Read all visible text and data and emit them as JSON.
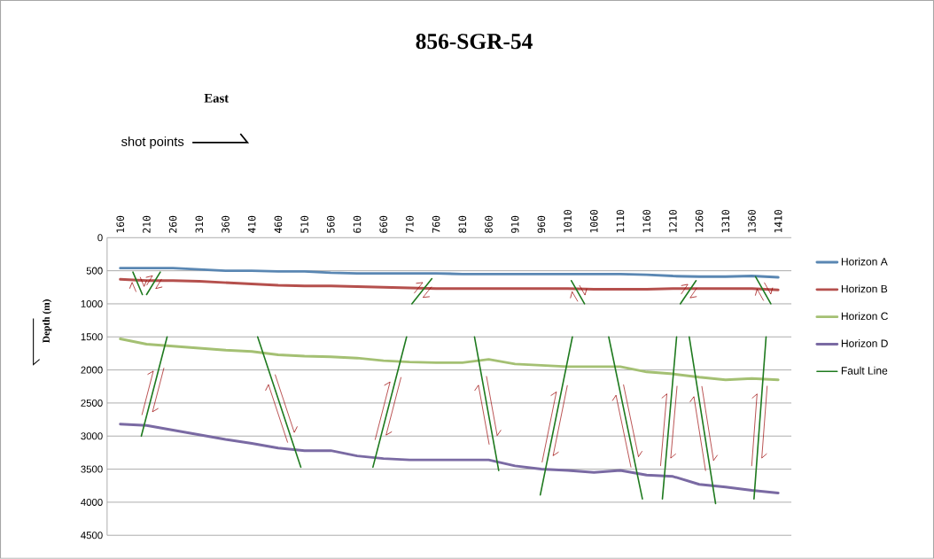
{
  "chart_data": {
    "type": "line",
    "title": "856-SGR-54",
    "xlabel": "shot points",
    "ylabel": "Depth (m)",
    "annotations": [
      "East"
    ],
    "x": [
      160,
      210,
      260,
      310,
      360,
      410,
      460,
      510,
      560,
      610,
      660,
      710,
      760,
      810,
      860,
      910,
      960,
      1010,
      1060,
      1110,
      1160,
      1210,
      1260,
      1310,
      1360,
      1410
    ],
    "xlim": [
      135,
      1435
    ],
    "xticks": [
      160,
      210,
      260,
      310,
      360,
      410,
      460,
      510,
      560,
      610,
      660,
      710,
      760,
      810,
      860,
      910,
      960,
      1010,
      1060,
      1110,
      1160,
      1210,
      1260,
      1310,
      1360,
      1410
    ],
    "ylim": [
      4500,
      0
    ],
    "yticks": [
      0,
      500,
      1000,
      1500,
      2000,
      2500,
      3000,
      3500,
      4000,
      4500
    ],
    "grid": "y",
    "legend": "right",
    "marker": "none",
    "line_style": "solid",
    "series": [
      {
        "name": "Horizon A",
        "color": "#5a87b3",
        "values": [
          460,
          460,
          460,
          480,
          500,
          500,
          510,
          510,
          530,
          540,
          540,
          540,
          540,
          550,
          550,
          550,
          550,
          550,
          550,
          550,
          560,
          580,
          590,
          590,
          580,
          600
        ]
      },
      {
        "name": "Horizon B",
        "color": "#b5504d",
        "values": [
          630,
          650,
          650,
          660,
          680,
          700,
          720,
          730,
          730,
          740,
          750,
          760,
          770,
          770,
          770,
          770,
          770,
          770,
          780,
          780,
          780,
          770,
          770,
          770,
          770,
          790
        ]
      },
      {
        "name": "Horizon C",
        "color": "#a4c073",
        "values": [
          1530,
          1610,
          1640,
          1670,
          1700,
          1720,
          1770,
          1790,
          1800,
          1820,
          1860,
          1880,
          1890,
          1890,
          1840,
          1910,
          1930,
          1950,
          1950,
          1950,
          2030,
          2060,
          2110,
          2150,
          2130,
          2150
        ]
      },
      {
        "name": "Horizon D",
        "color": "#7a6aa3",
        "values": [
          2820,
          2840,
          2910,
          2980,
          3050,
          3110,
          3180,
          3220,
          3220,
          3300,
          3340,
          3360,
          3360,
          3360,
          3360,
          3450,
          3500,
          3520,
          3550,
          3520,
          3590,
          3610,
          3730,
          3770,
          3820,
          3860
        ]
      },
      {
        "name": "Fault Line",
        "type": "line",
        "color": "#1f7a1f",
        "x": [
          184,
          202,
          null,
          210,
          236,
          null,
          714,
          752,
          null,
          1017,
          1042,
          null,
          1224,
          1254,
          null,
          1367,
          1396,
          null,
          249,
          200,
          null,
          421,
          503,
          null,
          704,
          640,
          null,
          833,
          879,
          null,
          1019,
          958,
          null,
          1088,
          1152,
          null,
          1217,
          1190,
          null,
          1241,
          1291,
          null,
          1387,
          1364
        ],
        "values": [
          520,
          860,
          null,
          860,
          520,
          null,
          1000,
          620,
          null,
          650,
          1000,
          null,
          1000,
          650,
          null,
          590,
          1000,
          null,
          1500,
          3000,
          null,
          1500,
          3470,
          null,
          1500,
          3470,
          null,
          1500,
          3520,
          null,
          1500,
          3890,
          null,
          1500,
          3950,
          null,
          1500,
          3950,
          null,
          1500,
          4020,
          null,
          1500,
          3950
        ]
      }
    ]
  }
}
